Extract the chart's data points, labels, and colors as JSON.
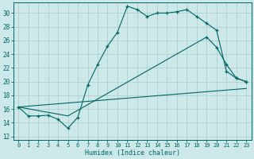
{
  "xlabel": "Humidex (Indice chaleur)",
  "bg_color": "#cce8e8",
  "grid_color": "#aacccc",
  "line_color": "#006666",
  "xlim": [
    -0.5,
    23.5
  ],
  "ylim": [
    11.5,
    31.5
  ],
  "xticks": [
    0,
    1,
    2,
    3,
    4,
    5,
    6,
    7,
    8,
    9,
    10,
    11,
    12,
    13,
    14,
    15,
    16,
    17,
    18,
    19,
    20,
    21,
    22,
    23
  ],
  "yticks": [
    12,
    14,
    16,
    18,
    20,
    22,
    24,
    26,
    28,
    30
  ],
  "line1_x": [
    0,
    1,
    2,
    3,
    4,
    5,
    6,
    7,
    8,
    9,
    10,
    11,
    12,
    13,
    14,
    15,
    16,
    17,
    18,
    19,
    20,
    21,
    22,
    23
  ],
  "line1_y": [
    16.3,
    15.0,
    15.0,
    15.1,
    14.5,
    13.2,
    14.8,
    19.5,
    22.5,
    25.2,
    27.2,
    31.0,
    30.5,
    29.5,
    30.0,
    30.0,
    30.2,
    30.5,
    29.5,
    28.5,
    27.5,
    21.5,
    20.5,
    20.0
  ],
  "line2_x": [
    0,
    23
  ],
  "line2_y": [
    16.3,
    19.0
  ],
  "line3_x": [
    0,
    5,
    19,
    20,
    21,
    22,
    23
  ],
  "line3_y": [
    16.3,
    15.0,
    26.5,
    25.0,
    22.5,
    20.5,
    20.0
  ],
  "line3_marker_x": [
    19,
    20,
    21,
    22,
    23
  ],
  "line3_marker_y": [
    26.5,
    25.0,
    22.5,
    20.5,
    20.0
  ]
}
